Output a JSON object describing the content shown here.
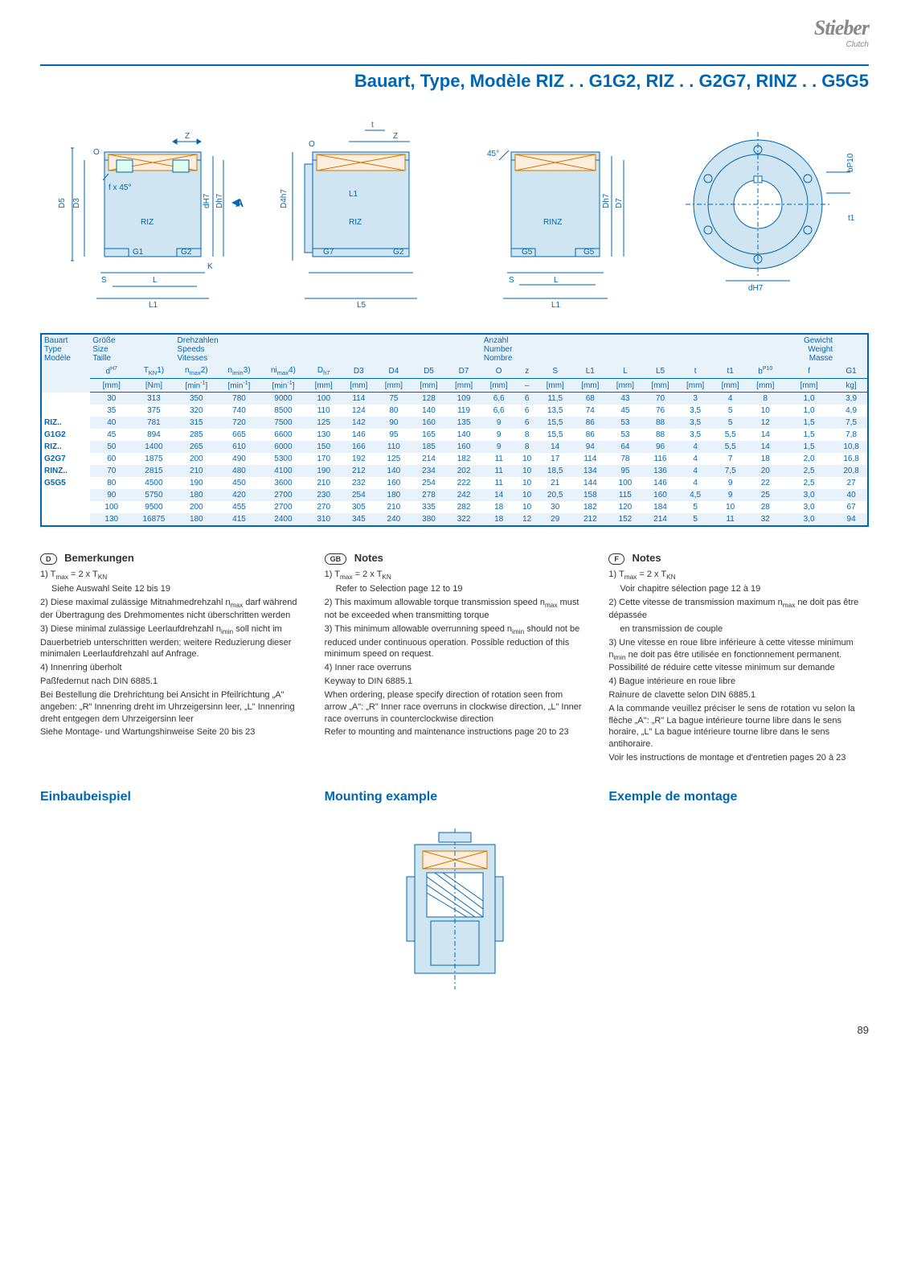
{
  "logo": {
    "main": "Stieber",
    "sub": "Clutch"
  },
  "title": "Bauart, Type, Modèle RIZ . . G1G2, RIZ . . G2G7, RINZ . . G5G5",
  "diagram_labels": {
    "d1": [
      "Z",
      "O",
      "f x 45°",
      "D5",
      "D3",
      "RIZ",
      "G1",
      "G2",
      "dH7",
      "Dh7",
      "A",
      "K",
      "S",
      "L",
      "L1"
    ],
    "d2": [
      "t",
      "O",
      "Z",
      "D4h7",
      "L1",
      "RIZ",
      "G7",
      "G2",
      "L5"
    ],
    "d3": [
      "45°",
      "RINZ",
      "G5",
      "G5",
      "Dh7",
      "D7",
      "S",
      "L",
      "L1"
    ],
    "d4": [
      "bP10",
      "t1",
      "dH7"
    ]
  },
  "table": {
    "header_groups": {
      "col1": [
        "Bauart",
        "Type",
        "Modèle"
      ],
      "col2": [
        "Größe",
        "Size",
        "Taille"
      ],
      "speeds": [
        "Drehzahlen",
        "Speeds",
        "Vitesses"
      ],
      "number": [
        "Anzahl",
        "Number",
        "Nombre"
      ],
      "weight": [
        "Gewicht",
        "Weight",
        "Masse"
      ]
    },
    "col_symbols": [
      "dH7",
      "TKN1)",
      "nmax2)",
      "nimin3)",
      "nimax4)",
      "Dh7",
      "D3",
      "D4",
      "D5",
      "D7",
      "O",
      "z",
      "S",
      "L1",
      "L",
      "L5",
      "t",
      "t1",
      "bP10",
      "f",
      "G1"
    ],
    "col_units": [
      "[mm]",
      "[Nm]",
      "[min-1]",
      "[min-1]",
      "[min-1]",
      "[mm]",
      "[mm]",
      "[mm]",
      "[mm]",
      "[mm]",
      "[mm]",
      "–",
      "[mm]",
      "[mm]",
      "[mm]",
      "[mm]",
      "[mm]",
      "[mm]",
      "[mm]",
      "[mm]",
      "kg]"
    ],
    "row_labels": [
      "",
      "",
      "RIZ..",
      "G1G2",
      "RIZ..",
      "G2G7",
      "RINZ..",
      "G5G5",
      "",
      "",
      ""
    ],
    "rows": [
      [
        "30",
        "313",
        "350",
        "780",
        "9000",
        "100",
        "114",
        "75",
        "128",
        "109",
        "6,6",
        "6",
        "11,5",
        "68",
        "43",
        "70",
        "3",
        "4",
        "8",
        "1,0",
        "3,9"
      ],
      [
        "35",
        "375",
        "320",
        "740",
        "8500",
        "110",
        "124",
        "80",
        "140",
        "119",
        "6,6",
        "6",
        "13,5",
        "74",
        "45",
        "76",
        "3,5",
        "5",
        "10",
        "1,0",
        "4,9"
      ],
      [
        "40",
        "781",
        "315",
        "720",
        "7500",
        "125",
        "142",
        "90",
        "160",
        "135",
        "9",
        "6",
        "15,5",
        "86",
        "53",
        "88",
        "3,5",
        "5",
        "12",
        "1,5",
        "7,5"
      ],
      [
        "45",
        "894",
        "285",
        "665",
        "6600",
        "130",
        "146",
        "95",
        "165",
        "140",
        "9",
        "8",
        "15,5",
        "86",
        "53",
        "88",
        "3,5",
        "5,5",
        "14",
        "1,5",
        "7,8"
      ],
      [
        "50",
        "1400",
        "265",
        "610",
        "6000",
        "150",
        "166",
        "110",
        "185",
        "160",
        "9",
        "8",
        "14",
        "94",
        "64",
        "96",
        "4",
        "5,5",
        "14",
        "1,5",
        "10,8"
      ],
      [
        "60",
        "1875",
        "200",
        "490",
        "5300",
        "170",
        "192",
        "125",
        "214",
        "182",
        "11",
        "10",
        "17",
        "114",
        "78",
        "116",
        "4",
        "7",
        "18",
        "2,0",
        "16,8"
      ],
      [
        "70",
        "2815",
        "210",
        "480",
        "4100",
        "190",
        "212",
        "140",
        "234",
        "202",
        "11",
        "10",
        "18,5",
        "134",
        "95",
        "136",
        "4",
        "7,5",
        "20",
        "2,5",
        "20,8"
      ],
      [
        "80",
        "4500",
        "190",
        "450",
        "3600",
        "210",
        "232",
        "160",
        "254",
        "222",
        "11",
        "10",
        "21",
        "144",
        "100",
        "146",
        "4",
        "9",
        "22",
        "2,5",
        "27"
      ],
      [
        "90",
        "5750",
        "180",
        "420",
        "2700",
        "230",
        "254",
        "180",
        "278",
        "242",
        "14",
        "10",
        "20,5",
        "158",
        "115",
        "160",
        "4,5",
        "9",
        "25",
        "3,0",
        "40"
      ],
      [
        "100",
        "9500",
        "200",
        "455",
        "2700",
        "270",
        "305",
        "210",
        "335",
        "282",
        "18",
        "10",
        "30",
        "182",
        "120",
        "184",
        "5",
        "10",
        "28",
        "3,0",
        "67"
      ],
      [
        "130",
        "16875",
        "180",
        "415",
        "2400",
        "310",
        "345",
        "240",
        "380",
        "322",
        "18",
        "12",
        "29",
        "212",
        "152",
        "214",
        "5",
        "11",
        "32",
        "3,0",
        "94"
      ]
    ]
  },
  "notes": {
    "de": {
      "badge": "D",
      "title": "Bemerkungen",
      "lines": [
        "1) Tmax = 2 x TKN",
        "Siehe Auswahl Seite 12 bis 19",
        "2) Diese maximal zulässige Mitnahmedrehzahl nmax darf während der Übertragung des Drehmomentes nicht überschritten werden",
        "3) Diese minimal zulässige Leerlaufdrehzahl nimin soll nicht im Dauerbetrieb unterschritten werden; weitere Reduzierung dieser minimalen Leerlaufdrehzahl auf Anfrage.",
        "4) Innenring überholt",
        "Paßfedernut nach DIN 6885.1",
        "Bei Bestellung die Drehrichtung bei Ansicht in Pfeilrichtung „A\" angeben: „R\" Innenring dreht im Uhrzeigersinn leer, „L\" Innenring dreht entgegen dem Uhrzeigersinn leer",
        "Siehe Montage- und Wartungshinweise Seite 20 bis 23"
      ]
    },
    "en": {
      "badge": "GB",
      "title": "Notes",
      "lines": [
        "1) Tmax = 2 x TKN",
        "Refer to Selection page 12 to 19",
        "2) This maximum allowable torque transmission speed nmax must not be exceeded when transmitting torque",
        "3) This minimum allowable overrunning speed nimin should not be reduced under continuous operation. Possible reduction of this minimum speed on request.",
        "4) Inner race overruns",
        "Keyway to DIN 6885.1",
        "When ordering, please specify direction of rotation seen from arrow „A\": „R\" Inner race overruns in clockwise direction, „L\" Inner race overruns in counterclockwise direction",
        "Refer to mounting and maintenance instructions page 20 to 23"
      ]
    },
    "fr": {
      "badge": "F",
      "title": "Notes",
      "lines": [
        "1) Tmax = 2 x TKN",
        "Voir chapitre sélection page 12 à 19",
        "2) Cette vitesse de transmission maximum nmax ne doit pas être dépassée",
        "en transmission de couple",
        "3) Une vitesse en roue libre inférieure à cette vitesse minimum nimin ne doit pas être utilisée en fonctionnement permanent. Possibilité de réduire cette vitesse minimum sur demande",
        "4) Bague intérieure en roue libre",
        "Rainure de clavette selon DIN 6885.1",
        "A la commande veuillez préciser le sens de rotation vu selon la flèche „A\": „R\" La bague intérieure tourne libre dans le sens horaire, „L\" La bague intérieure tourne libre dans le sens antihoraire.",
        "Voir les instructions de montage et d'entretien pages 20 à 23"
      ]
    }
  },
  "mounting": {
    "de": "Einbaubeispiel",
    "en": "Mounting example",
    "fr": "Exemple de montage"
  },
  "page_number": "89",
  "colors": {
    "blue": "#0066b3",
    "light_blue_fill": "#cfe5f2",
    "row_alt": "#e8f2fa"
  }
}
